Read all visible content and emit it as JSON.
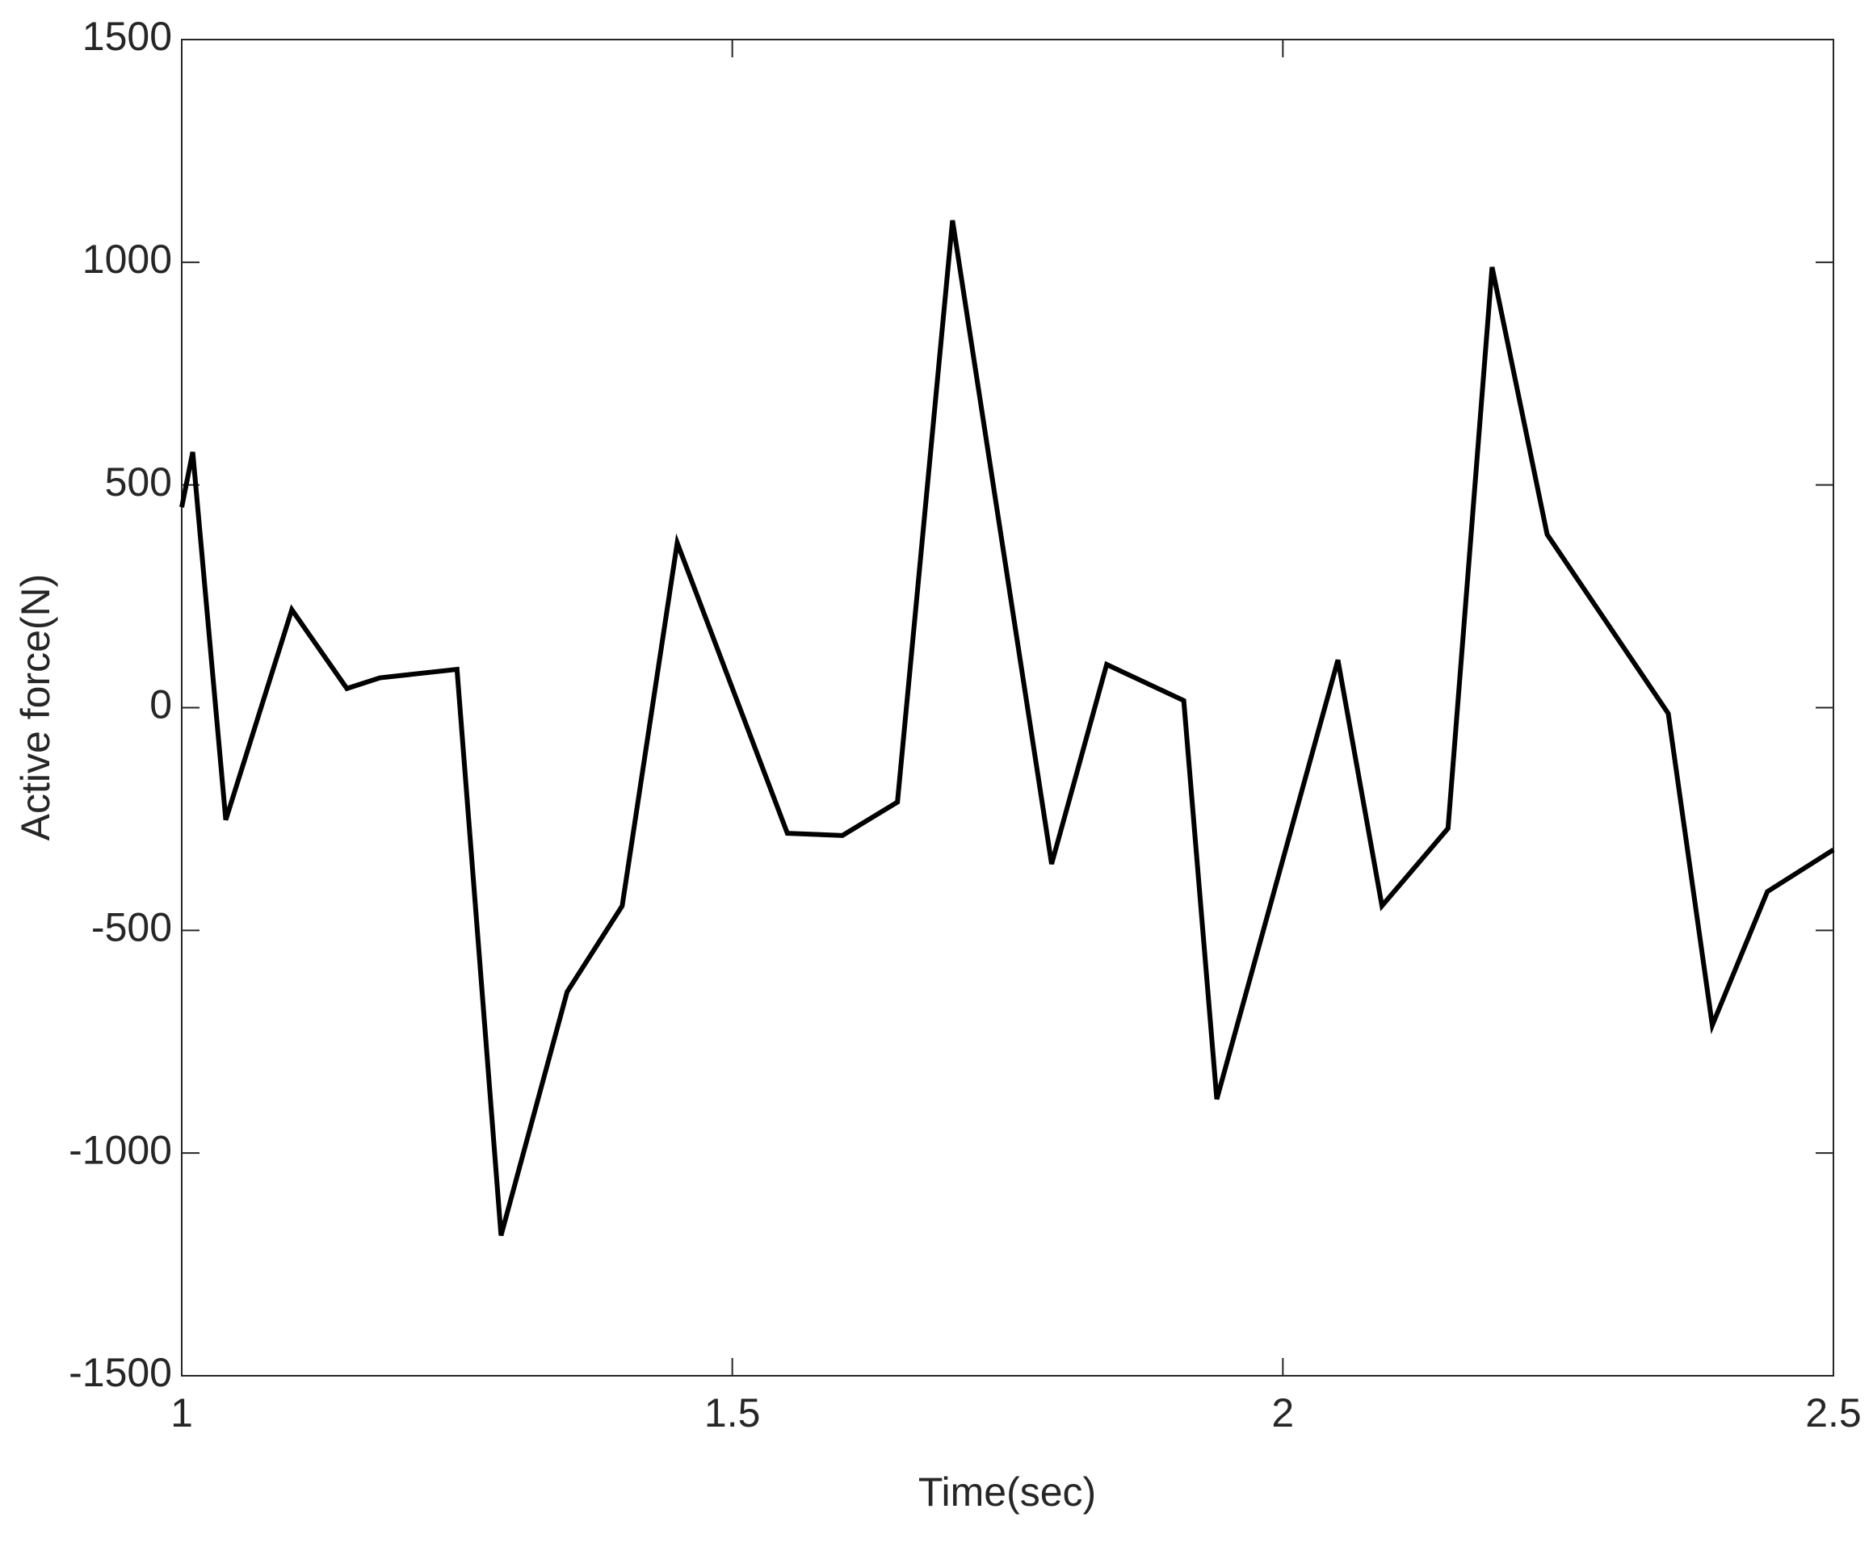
{
  "chart_data": {
    "type": "line",
    "x_label": "Time(sec)",
    "y_label": "Active force(N)",
    "x": [
      1.0,
      1.01,
      1.04,
      1.1,
      1.15,
      1.18,
      1.25,
      1.29,
      1.35,
      1.4,
      1.45,
      1.55,
      1.6,
      1.65,
      1.7,
      1.79,
      1.84,
      1.91,
      1.94,
      2.05,
      2.09,
      2.15,
      2.19,
      2.24,
      2.35,
      2.39,
      2.44,
      2.5
    ],
    "series": [
      {
        "color": "#000000",
        "values": [
          450,
          574,
          -252,
          220,
          43,
          67,
          86,
          -1185,
          -638,
          -445,
          370,
          -282,
          -287,
          -212,
          1094,
          -351,
          97,
          16,
          -879,
          107,
          -445,
          -271,
          989,
          389,
          -13,
          -713,
          -413,
          -319
        ]
      }
    ],
    "xlim": [
      1,
      2.5
    ],
    "xticks": [
      1,
      1.5,
      2,
      2.5
    ],
    "ylim": [
      -1500,
      1500
    ],
    "yticks": [
      -1500,
      -1000,
      -500,
      0,
      500,
      1000,
      1500
    ]
  }
}
